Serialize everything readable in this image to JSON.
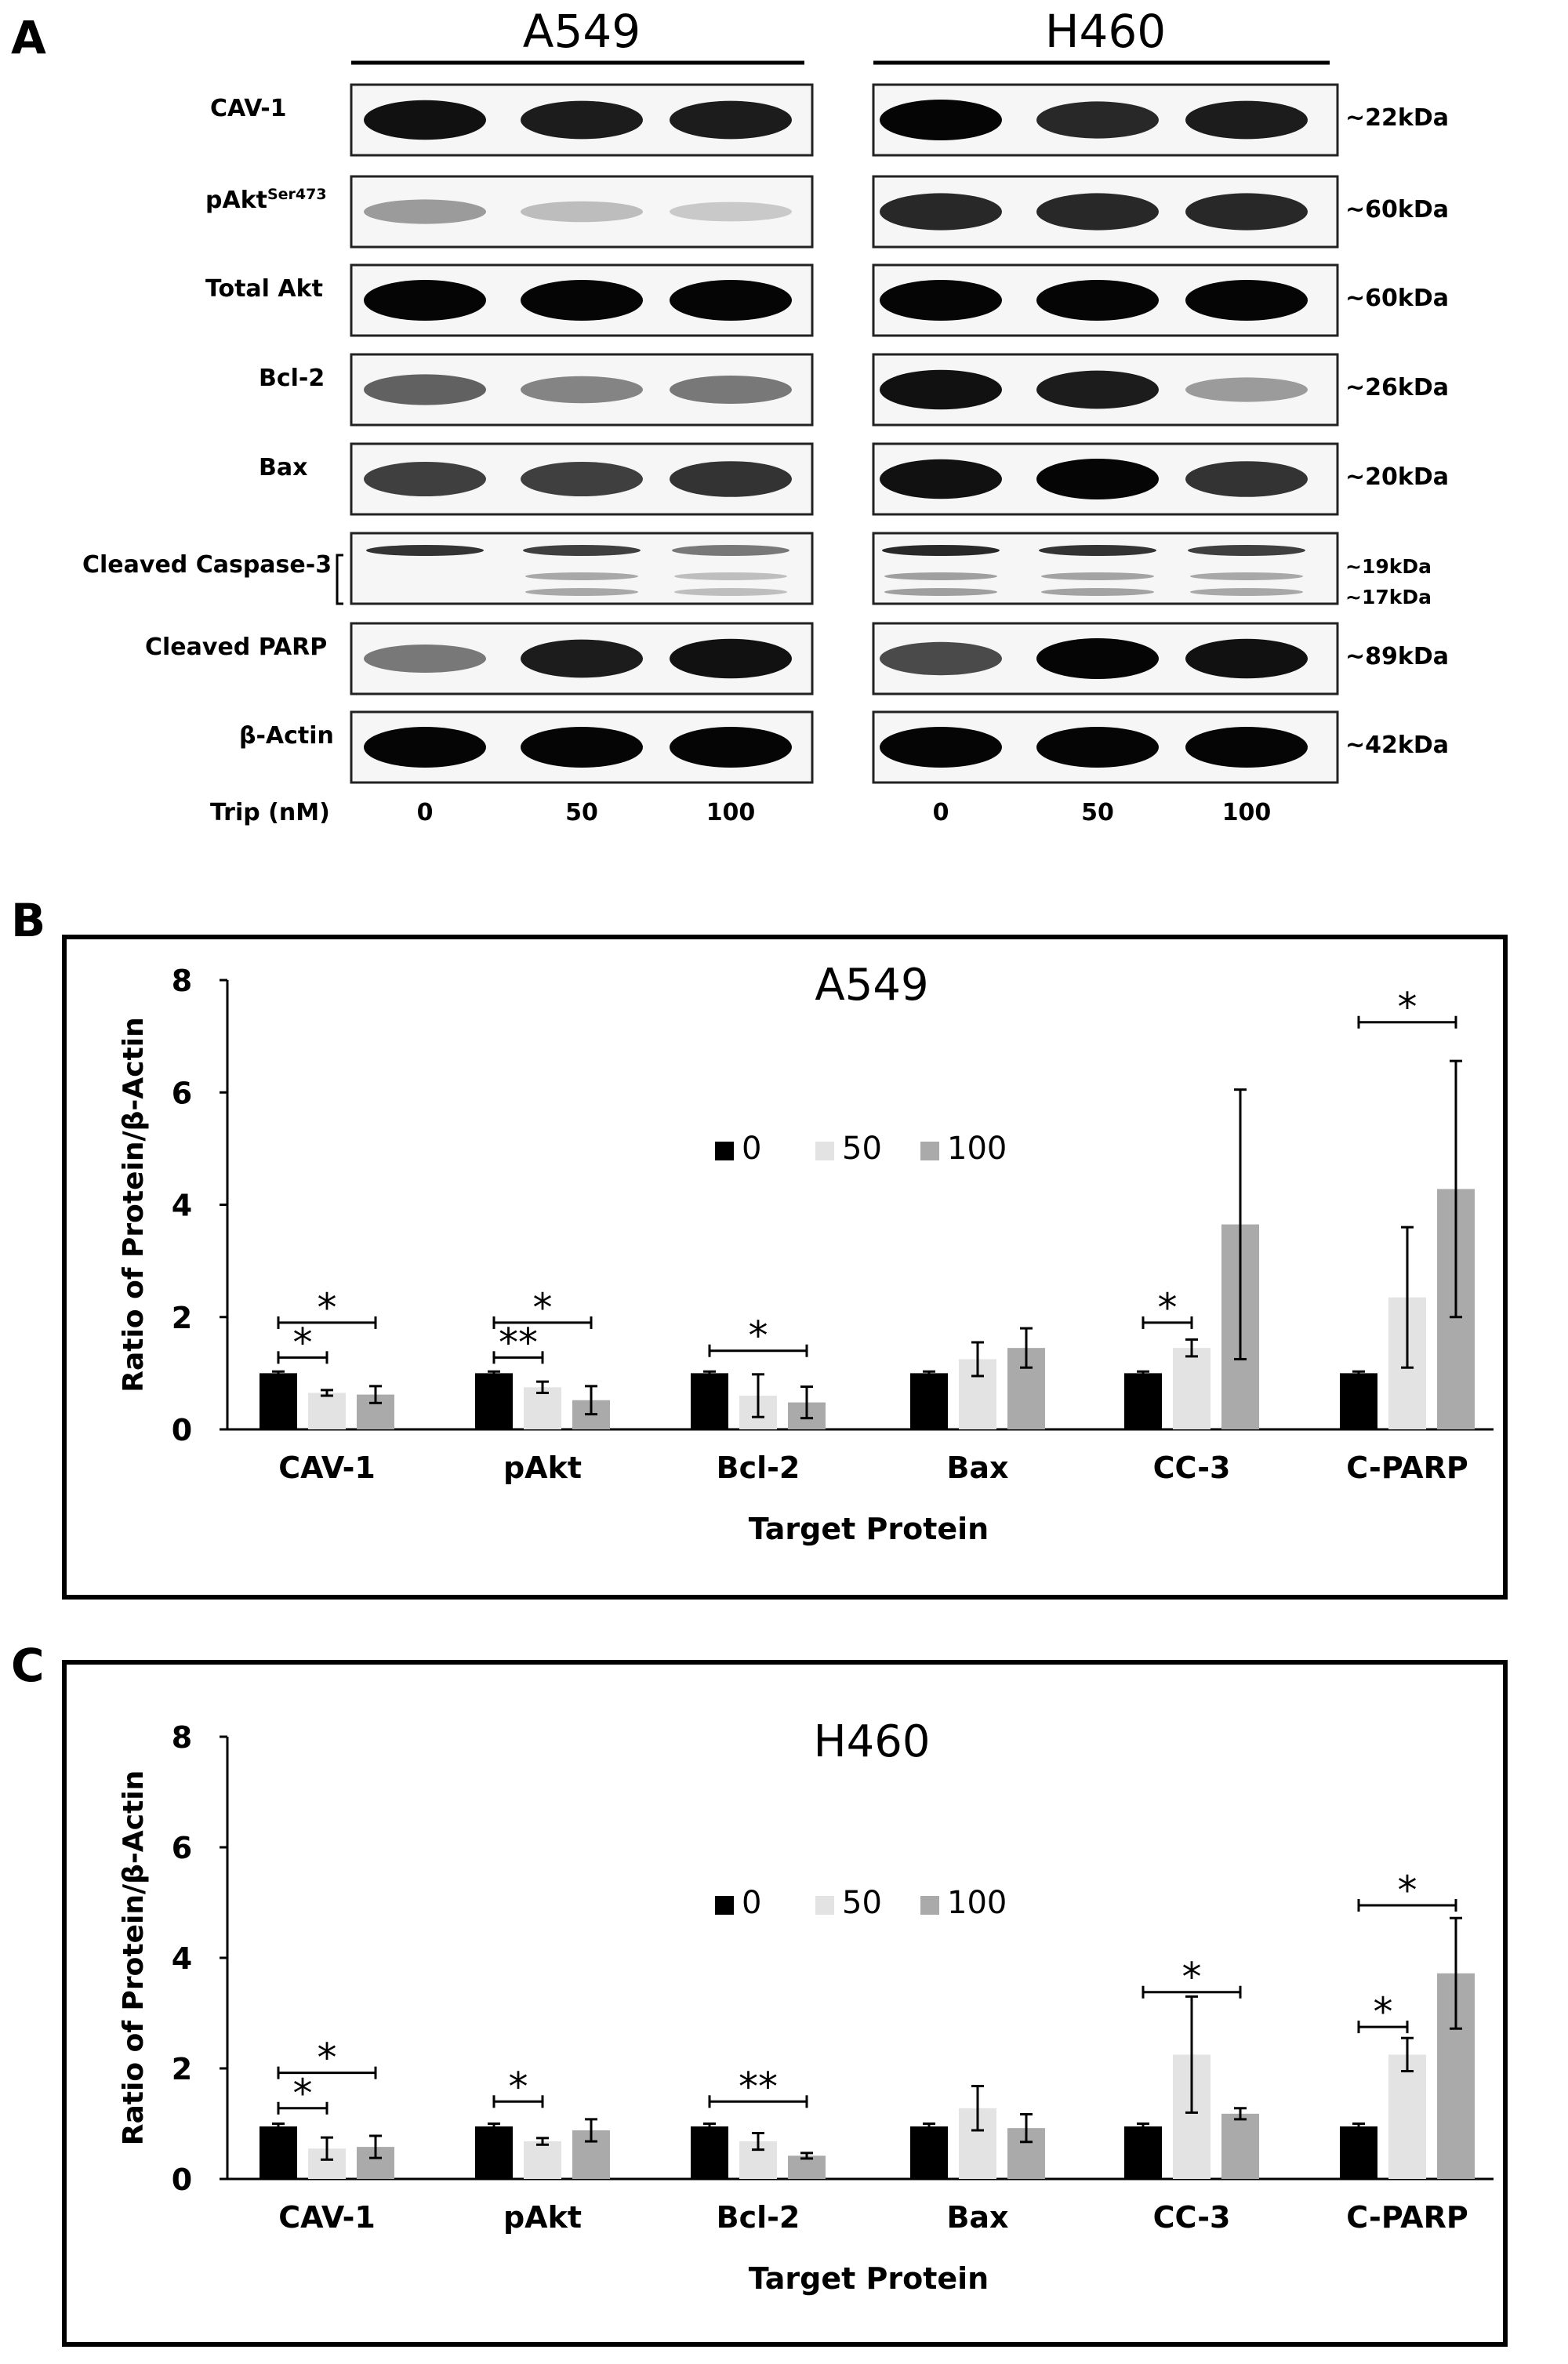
{
  "panels": {
    "a": "A",
    "b": "B",
    "c": "C"
  },
  "blot": {
    "cell_lines": [
      "A549",
      "H460"
    ],
    "rows": [
      {
        "label": "CAV-1",
        "sup": "",
        "kda": [
          "~22kDa"
        ]
      },
      {
        "label": "pAkt",
        "sup": "Ser473",
        "kda": [
          "~60kDa"
        ]
      },
      {
        "label": "Total Akt",
        "sup": "",
        "kda": [
          "~60kDa"
        ]
      },
      {
        "label": "Bcl-2",
        "sup": "",
        "kda": [
          "~26kDa"
        ]
      },
      {
        "label": "Bax",
        "sup": "",
        "kda": [
          "~20kDa"
        ]
      },
      {
        "label": "Cleaved Caspase-3",
        "sup": "",
        "kda": [
          "~19kDa",
          "~17kDa"
        ]
      },
      {
        "label": "Cleaved PARP",
        "sup": "",
        "kda": [
          "~89kDa"
        ]
      },
      {
        "label": "β-Actin",
        "sup": "",
        "kda": [
          "~42kDa"
        ]
      }
    ],
    "dose_label": "Trip (nM)",
    "doses": [
      "0",
      "50",
      "100"
    ],
    "band_intensity": {
      "A549": [
        [
          0.95,
          0.9,
          0.9
        ],
        [
          0.35,
          0.2,
          0.15
        ],
        [
          1.0,
          1.0,
          1.0
        ],
        [
          0.6,
          0.45,
          0.5
        ],
        [
          0.75,
          0.75,
          0.8
        ],
        [
          0.8,
          0.75,
          0.5
        ],
        [
          0.5,
          0.9,
          0.95
        ],
        [
          1.0,
          1.0,
          1.0
        ]
      ],
      "H460": [
        [
          1.0,
          0.85,
          0.9
        ],
        [
          0.85,
          0.85,
          0.85
        ],
        [
          1.0,
          1.0,
          1.0
        ],
        [
          0.95,
          0.9,
          0.35
        ],
        [
          0.95,
          1.0,
          0.8
        ],
        [
          0.85,
          0.8,
          0.75
        ],
        [
          0.7,
          1.0,
          0.95
        ],
        [
          1.0,
          1.0,
          1.0
        ]
      ]
    }
  },
  "chart_data": [
    {
      "type": "bar",
      "title": "A549",
      "xlabel": "Target Protein",
      "ylabel": "Ratio of Protein/β-Actin",
      "ylim": [
        0,
        8
      ],
      "yticks": [
        0,
        2,
        4,
        6,
        8
      ],
      "legend_position": "upper-center",
      "categories": [
        "CAV-1",
        "pAkt",
        "Bcl-2",
        "Bax",
        "CC-3",
        "C-PARP"
      ],
      "series": [
        {
          "name": "0",
          "color": "#000000",
          "values": [
            1.0,
            1.0,
            1.0,
            1.0,
            1.0,
            1.0
          ],
          "errors": [
            0.03,
            0.03,
            0.03,
            0.03,
            0.03,
            0.03
          ]
        },
        {
          "name": "50",
          "color": "#e3e3e3",
          "values": [
            0.65,
            0.75,
            0.6,
            1.25,
            1.45,
            2.35
          ],
          "errors": [
            0.05,
            0.1,
            0.38,
            0.3,
            0.15,
            1.25
          ]
        },
        {
          "name": "100",
          "color": "#aaaaaa",
          "values": [
            0.62,
            0.52,
            0.48,
            1.45,
            3.65,
            4.28
          ],
          "errors": [
            0.15,
            0.25,
            0.28,
            0.35,
            2.4,
            2.28
          ]
        }
      ],
      "significance": [
        {
          "category": 0,
          "from": "0",
          "to": "50",
          "label": "*",
          "y": 1.28
        },
        {
          "category": 0,
          "from": "0",
          "to": "100",
          "label": "*",
          "y": 1.9
        },
        {
          "category": 1,
          "from": "0",
          "to": "50",
          "label": "**",
          "y": 1.28
        },
        {
          "category": 1,
          "from": "0",
          "to": "100",
          "label": "*",
          "y": 1.9
        },
        {
          "category": 2,
          "from": "0",
          "to": "100",
          "label": "*",
          "y": 1.4
        },
        {
          "category": 4,
          "from": "0",
          "to": "50",
          "label": "*",
          "y": 1.9
        },
        {
          "category": 5,
          "from": "0",
          "to": "100",
          "label": "*",
          "y": 7.25
        }
      ]
    },
    {
      "type": "bar",
      "title": "H460",
      "xlabel": "Target Protein",
      "ylabel": "Ratio of Protein/β-Actin",
      "ylim": [
        0,
        8
      ],
      "yticks": [
        0,
        2,
        4,
        6,
        8
      ],
      "legend_position": "upper-center",
      "categories": [
        "CAV-1",
        "pAkt",
        "Bcl-2",
        "Bax",
        "CC-3",
        "C-PARP"
      ],
      "series": [
        {
          "name": "0",
          "color": "#000000",
          "values": [
            0.95,
            0.95,
            0.95,
            0.95,
            0.95,
            0.95
          ],
          "errors": [
            0.05,
            0.05,
            0.05,
            0.05,
            0.05,
            0.05
          ]
        },
        {
          "name": "50",
          "color": "#e3e3e3",
          "values": [
            0.55,
            0.68,
            0.68,
            1.28,
            2.25,
            2.25
          ],
          "errors": [
            0.2,
            0.06,
            0.15,
            0.4,
            1.05,
            0.3
          ]
        },
        {
          "name": "100",
          "color": "#aaaaaa",
          "values": [
            0.58,
            0.88,
            0.42,
            0.92,
            1.18,
            3.72
          ],
          "errors": [
            0.2,
            0.2,
            0.05,
            0.25,
            0.1,
            1.0
          ]
        }
      ],
      "significance": [
        {
          "category": 0,
          "from": "0",
          "to": "50",
          "label": "*",
          "y": 1.28
        },
        {
          "category": 0,
          "from": "0",
          "to": "100",
          "label": "*",
          "y": 1.92
        },
        {
          "category": 1,
          "from": "0",
          "to": "50",
          "label": "*",
          "y": 1.4
        },
        {
          "category": 2,
          "from": "0",
          "to": "100",
          "label": "**",
          "y": 1.4
        },
        {
          "category": 4,
          "from": "0",
          "to": "100",
          "label": "*",
          "y": 3.38
        },
        {
          "category": 5,
          "from": "0",
          "to": "50",
          "label": "*",
          "y": 2.75
        },
        {
          "category": 5,
          "from": "0",
          "to": "100",
          "label": "*",
          "y": 4.95
        }
      ]
    }
  ]
}
